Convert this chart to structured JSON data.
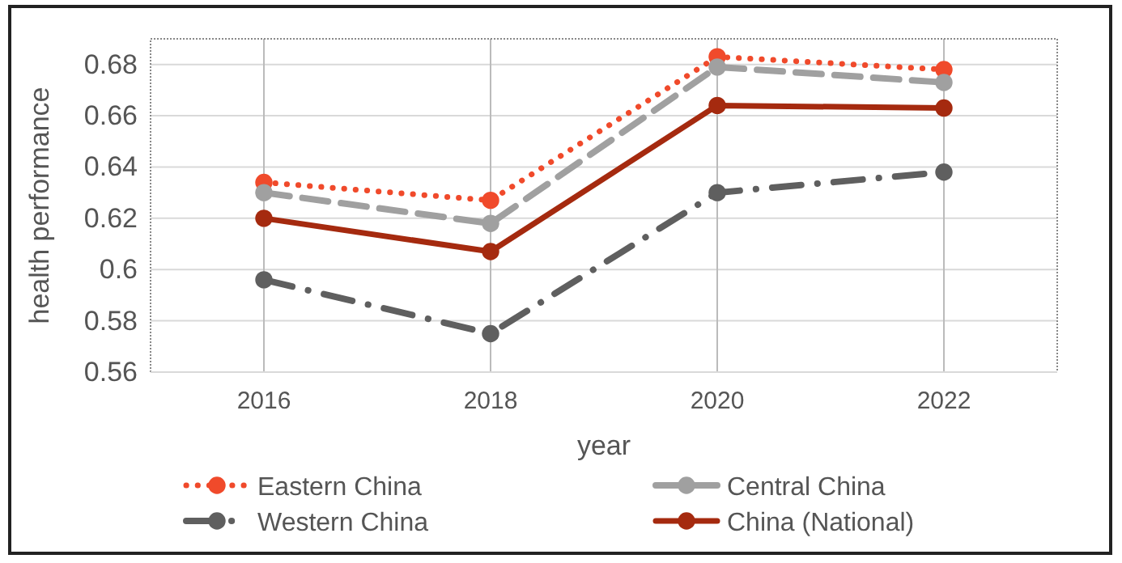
{
  "chart_data": {
    "type": "line",
    "xlabel": "year",
    "ylabel": "health performance",
    "categories": [
      "2016",
      "2018",
      "2020",
      "2022"
    ],
    "series": [
      {
        "name": "Eastern China",
        "color": "#f04a2b",
        "line_style": "dotted",
        "values": [
          0.634,
          0.627,
          0.683,
          0.678
        ]
      },
      {
        "name": "Central China",
        "color": "#a0a0a0",
        "line_style": "dashed",
        "values": [
          0.63,
          0.618,
          0.679,
          0.673
        ]
      },
      {
        "name": "Western China",
        "color": "#5f5f5f",
        "line_style": "dashdot",
        "values": [
          0.596,
          0.575,
          0.63,
          0.638
        ]
      },
      {
        "name": "China (National)",
        "color": "#a52a0f",
        "line_style": "solid",
        "values": [
          0.62,
          0.607,
          0.664,
          0.663
        ]
      }
    ],
    "ylim": [
      0.56,
      0.69
    ],
    "yticks": [
      0.56,
      0.58,
      {
        "value": 0.6,
        "label": "0.6"
      },
      0.62,
      0.64,
      0.66,
      0.68
    ],
    "grid": true,
    "marker": "circle",
    "legend": "bottom"
  }
}
